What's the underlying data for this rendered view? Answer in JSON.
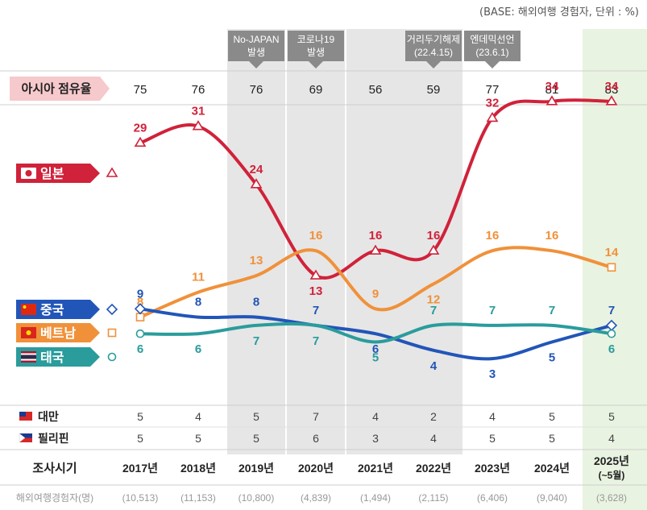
{
  "base_note": "(BASE: 해외여행 경험자, 단위 : %)",
  "events": [
    {
      "year": "2019년",
      "lines": [
        "No-JAPAN",
        "발생"
      ]
    },
    {
      "year": "2020년",
      "lines": [
        "코로나19",
        "발생"
      ]
    },
    {
      "year": "2022년",
      "lines": [
        "거리두기해제",
        "(22.4.15)"
      ]
    },
    {
      "year": "2023년",
      "lines": [
        "엔데믹선언",
        "(23.6.1)"
      ]
    }
  ],
  "asia_share": {
    "label": "아시아 점유율",
    "values": [
      75,
      76,
      76,
      69,
      56,
      59,
      77,
      81,
      83
    ]
  },
  "chart_data": {
    "type": "line",
    "x": [
      "2017년",
      "2018년",
      "2019년",
      "2020년",
      "2021년",
      "2022년",
      "2023년",
      "2024년",
      "2025년\n(~5월)"
    ],
    "series": [
      {
        "name": "일본",
        "key": "japan",
        "color": "#d0223a",
        "marker": "triangle",
        "values": [
          29,
          31,
          24,
          13,
          16,
          16,
          32,
          34,
          34
        ]
      },
      {
        "name": "베트남",
        "key": "vietnam",
        "color": "#f0913a",
        "marker": "square",
        "values": [
          8,
          11,
          13,
          16,
          9,
          12,
          16,
          16,
          14
        ]
      },
      {
        "name": "중국",
        "key": "china",
        "color": "#2255b8",
        "marker": "diamond",
        "values": [
          9,
          8,
          8,
          7,
          6,
          4,
          3,
          5,
          7
        ]
      },
      {
        "name": "태국",
        "key": "thailand",
        "color": "#2a9c9c",
        "marker": "circle",
        "values": [
          6,
          6,
          7,
          7,
          5,
          7,
          7,
          7,
          6
        ]
      }
    ],
    "shaded_periods": [
      "2019년",
      "2020년",
      "2021년",
      "2022년"
    ],
    "highlight_period": "2025년\n(~5월)"
  },
  "extra_rows": [
    {
      "name": "대만",
      "flag": "taiwan-flag-icon",
      "values": [
        5,
        4,
        5,
        7,
        4,
        2,
        4,
        5,
        5
      ]
    },
    {
      "name": "필리핀",
      "flag": "philippines-flag-icon",
      "values": [
        5,
        5,
        5,
        6,
        3,
        4,
        5,
        5,
        4
      ]
    }
  ],
  "survey_row_label": "조사시기",
  "respondents": {
    "label": "해외여행경험자(명)",
    "values": [
      "(10,513)",
      "(11,153)",
      "(10,800)",
      "(4,839)",
      "(1,494)",
      "(2,115)",
      "(6,406)",
      "(9,040)",
      "(3,628)"
    ]
  },
  "colors": {
    "shade": "#e6e6e6",
    "highlight": "#e9f3e1",
    "share_label_bg": "#f6c9cc",
    "event_box": "#8a8a8a"
  }
}
